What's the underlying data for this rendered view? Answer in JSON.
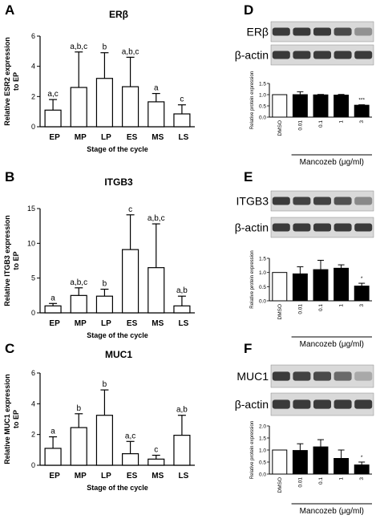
{
  "colors": {
    "bar_fill_left": "#ffffff",
    "bar_fill_dark": "#000000",
    "axis": "#000000",
    "blot_band": "#3a3a3a",
    "blot_bg": "#d9d9d9"
  },
  "chart_data": [
    {
      "panel": "A",
      "type": "bar",
      "title": "ERβ",
      "ylabel": "Relative ESR2 expression\nto EP",
      "xlabel": "Stage of the cycle",
      "categories": [
        "EP",
        "MP",
        "LP",
        "ES",
        "MS",
        "LS"
      ],
      "values": [
        1.1,
        2.6,
        3.2,
        2.65,
        1.65,
        0.85
      ],
      "errors": [
        0.7,
        2.35,
        1.7,
        1.95,
        0.55,
        0.6
      ],
      "sig": [
        "a,c",
        "a,b,c",
        "b",
        "a,b,c",
        "a",
        "c"
      ],
      "ylim": [
        0,
        6
      ],
      "yticks": [
        0,
        2,
        4,
        6
      ]
    },
    {
      "panel": "B",
      "type": "bar",
      "title": "ITGB3",
      "ylabel": "Relative ITGB3 expression\nto EP",
      "xlabel": "Stage of the cycle",
      "categories": [
        "EP",
        "MP",
        "LP",
        "ES",
        "MS",
        "LS"
      ],
      "values": [
        1.0,
        2.5,
        2.4,
        9.1,
        6.5,
        1.0
      ],
      "errors": [
        0.35,
        1.1,
        1.0,
        5.0,
        6.3,
        1.4
      ],
      "sig": [
        "a",
        "a,b,c",
        "b",
        "c",
        "a,b,c",
        "a,b"
      ],
      "ylim": [
        0,
        15
      ],
      "yticks": [
        0,
        5,
        10,
        15
      ]
    },
    {
      "panel": "C",
      "type": "bar",
      "title": "MUC1",
      "ylabel": "Relative MUC1 expression\nto EP",
      "xlabel": "Stage of the cycle",
      "categories": [
        "EP",
        "MP",
        "LP",
        "ES",
        "MS",
        "LS"
      ],
      "values": [
        1.1,
        2.45,
        3.25,
        0.75,
        0.4,
        1.95
      ],
      "errors": [
        0.75,
        0.9,
        1.65,
        0.8,
        0.25,
        1.3
      ],
      "sig": [
        "a",
        "b",
        "b",
        "a,c",
        "c",
        "a,b"
      ],
      "ylim": [
        0,
        6
      ],
      "yticks": [
        0,
        2,
        4,
        6
      ]
    },
    {
      "panel": "D",
      "type": "bar",
      "blot_labels": [
        "ERβ",
        "β-actin"
      ],
      "ylabel": "Relative protein expression",
      "xlabel": "Mancozeb (μg/ml)",
      "categories": [
        "DMSO",
        "0.01",
        "0.1",
        "1",
        "3"
      ],
      "values": [
        1.0,
        1.0,
        0.99,
        0.98,
        0.53
      ],
      "errors": [
        0,
        0.13,
        0.02,
        0.03,
        0.02
      ],
      "sig": [
        "",
        "",
        "",
        "",
        "***"
      ],
      "ylim": [
        0,
        1.5
      ],
      "yticks": [
        "0.0",
        "0.5",
        "1.0",
        "1.5"
      ],
      "band_intensity": [
        [
          1,
          1,
          1,
          0.9,
          0.45
        ],
        [
          1,
          1,
          1,
          1,
          1
        ]
      ]
    },
    {
      "panel": "E",
      "type": "bar",
      "blot_labels": [
        "ITGB3",
        "β-actin"
      ],
      "ylabel": "Relative protein expression",
      "xlabel": "Mancozeb (μg/ml)",
      "categories": [
        "DMSO",
        "0.01",
        "0.1",
        "1",
        "3"
      ],
      "values": [
        1.0,
        0.95,
        1.1,
        1.15,
        0.52
      ],
      "errors": [
        0,
        0.25,
        0.33,
        0.12,
        0.1
      ],
      "sig": [
        "",
        "",
        "",
        "",
        "*"
      ],
      "ylim": [
        0,
        1.5
      ],
      "yticks": [
        "0.0",
        "0.5",
        "1.0",
        "1.5"
      ],
      "band_intensity": [
        [
          1,
          0.95,
          0.95,
          0.85,
          0.5
        ],
        [
          1,
          1,
          1,
          1,
          1
        ]
      ]
    },
    {
      "panel": "F",
      "type": "bar",
      "blot_labels": [
        "MUC1",
        "β-actin"
      ],
      "ylabel": "Relative protein expression",
      "xlabel": "Mancozeb (μg/ml)",
      "categories": [
        "DMSO",
        "0.01",
        "0.1",
        "1",
        "3"
      ],
      "values": [
        1.0,
        0.98,
        1.13,
        0.65,
        0.38
      ],
      "errors": [
        0,
        0.28,
        0.3,
        0.35,
        0.12
      ],
      "sig": [
        "",
        "",
        "",
        "",
        "*"
      ],
      "ylim": [
        0,
        2.0
      ],
      "yticks": [
        "0.0",
        "0.5",
        "1.0",
        "1.5",
        "2.0"
      ],
      "band_intensity": [
        [
          1,
          0.95,
          0.9,
          0.7,
          0.3
        ],
        [
          1,
          1,
          1,
          1,
          1
        ]
      ]
    }
  ]
}
